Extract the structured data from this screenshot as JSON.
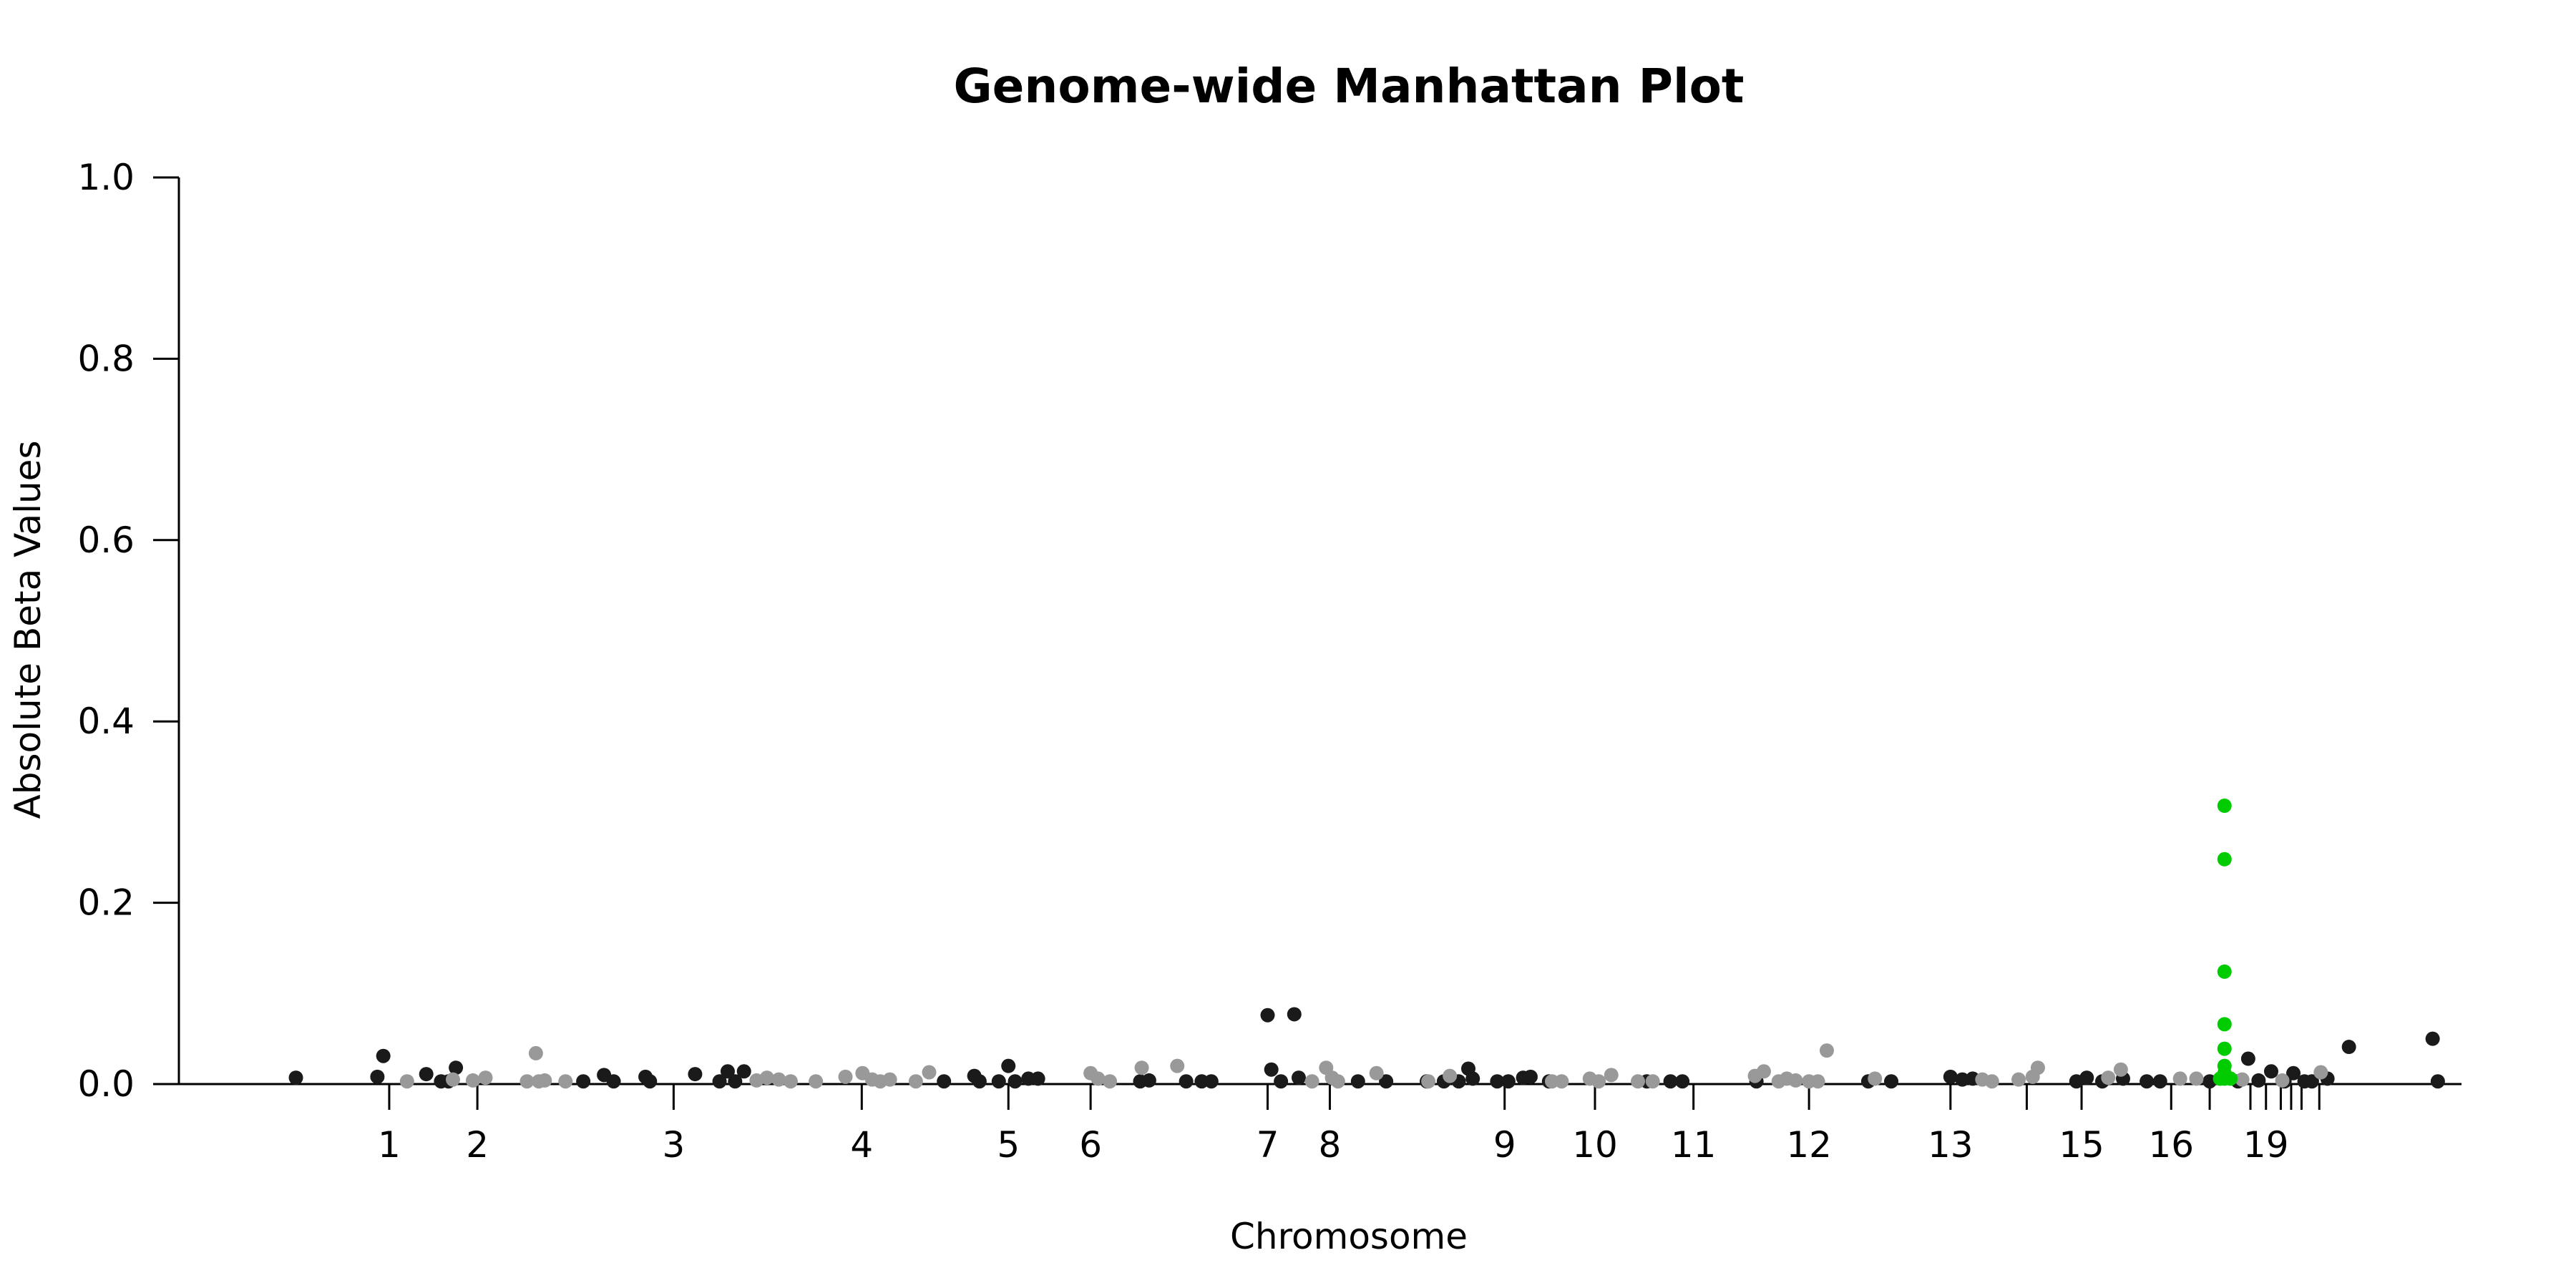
{
  "chart_data": {
    "type": "scatter",
    "title": "Genome-wide Manhattan Plot",
    "xlabel": "Chromosome",
    "ylabel": "Absolute Beta Values",
    "ylim": [
      0,
      1
    ],
    "yticks": [
      0,
      0.2,
      0.4,
      0.6,
      0.8,
      1
    ],
    "ytick_labels": [
      "0.0",
      "0.2",
      "0.4",
      "0.6",
      "0.8",
      "1.0"
    ],
    "xlim": [
      -160,
      2922
    ],
    "grid": false,
    "legend": "none",
    "colors": {
      "dark": "#1a1a1a",
      "light": "#999999",
      "highlight": "#00cc00"
    },
    "chromosome_ticks": [
      {
        "label": "1",
        "pos": 124
      },
      {
        "label": "2",
        "pos": 243
      },
      {
        "label": "3",
        "pos": 508
      },
      {
        "label": "4",
        "pos": 762
      },
      {
        "label": "5",
        "pos": 960
      },
      {
        "label": "6",
        "pos": 1071
      },
      {
        "label": "7",
        "pos": 1310
      },
      {
        "label": "8",
        "pos": 1394
      },
      {
        "label": "9",
        "pos": 1630
      },
      {
        "label": "10",
        "pos": 1752
      },
      {
        "label": "11",
        "pos": 1885
      },
      {
        "label": "12",
        "pos": 2041
      },
      {
        "label": "13",
        "pos": 2232
      },
      {
        "label": "",
        "pos": 2335
      },
      {
        "label": "15",
        "pos": 2409
      },
      {
        "label": "16",
        "pos": 2530
      },
      {
        "label": "",
        "pos": 2582
      },
      {
        "label": "",
        "pos": 2637
      },
      {
        "label": "19",
        "pos": 2658
      },
      {
        "label": "",
        "pos": 2678
      },
      {
        "label": "",
        "pos": 2692
      },
      {
        "label": "",
        "pos": 2706
      },
      {
        "label": "",
        "pos": 2730
      }
    ],
    "series": [
      {
        "color_key": "dark",
        "points": [
          [
            -2,
            0.007
          ],
          [
            108,
            0.008
          ],
          [
            116,
            0.031
          ],
          [
            174,
            0.011
          ],
          [
            194,
            0.003
          ],
          [
            204,
            0.003
          ],
          [
            214,
            0.018
          ],
          [
            386,
            0.003
          ],
          [
            414,
            0.01
          ],
          [
            427,
            0.003
          ],
          [
            470,
            0.008
          ],
          [
            476,
            0.003
          ],
          [
            537,
            0.011
          ],
          [
            570,
            0.003
          ],
          [
            581,
            0.014
          ],
          [
            591,
            0.003
          ],
          [
            603,
            0.014
          ],
          [
            873,
            0.003
          ],
          [
            914,
            0.009
          ],
          [
            921,
            0.003
          ],
          [
            947,
            0.003
          ],
          [
            960,
            0.02
          ],
          [
            969,
            0.003
          ],
          [
            987,
            0.006
          ],
          [
            1000,
            0.006
          ],
          [
            1138,
            0.003
          ],
          [
            1150,
            0.004
          ],
          [
            1200,
            0.003
          ],
          [
            1221,
            0.003
          ],
          [
            1234,
            0.003
          ],
          [
            1310,
            0.076
          ],
          [
            1315,
            0.016
          ],
          [
            1328,
            0.003
          ],
          [
            1352,
            0.007
          ],
          [
            1346,
            0.077
          ],
          [
            1432,
            0.003
          ],
          [
            1470,
            0.003
          ],
          [
            1525,
            0.003
          ],
          [
            1548,
            0.003
          ],
          [
            1568,
            0.003
          ],
          [
            1581,
            0.017
          ],
          [
            1587,
            0.006
          ],
          [
            1620,
            0.003
          ],
          [
            1635,
            0.003
          ],
          [
            1655,
            0.007
          ],
          [
            1665,
            0.008
          ],
          [
            1690,
            0.003
          ],
          [
            1822,
            0.003
          ],
          [
            1854,
            0.003
          ],
          [
            1870,
            0.003
          ],
          [
            1970,
            0.003
          ],
          [
            2121,
            0.003
          ],
          [
            2152,
            0.003
          ],
          [
            2232,
            0.008
          ],
          [
            2248,
            0.005
          ],
          [
            2262,
            0.006
          ],
          [
            2402,
            0.003
          ],
          [
            2416,
            0.007
          ],
          [
            2437,
            0.003
          ],
          [
            2465,
            0.006
          ],
          [
            2497,
            0.003
          ],
          [
            2515,
            0.003
          ],
          [
            2582,
            0.003
          ],
          [
            2620,
            0.003
          ],
          [
            2634,
            0.028
          ],
          [
            2648,
            0.004
          ],
          [
            2665,
            0.014
          ],
          [
            2683,
            0.003
          ],
          [
            2695,
            0.012
          ],
          [
            2710,
            0.003
          ],
          [
            2720,
            0.003
          ],
          [
            2741,
            0.006
          ],
          [
            2770,
            0.041
          ],
          [
            2883,
            0.05
          ],
          [
            2890,
            0.003
          ]
        ]
      },
      {
        "color_key": "light",
        "points": [
          [
            148,
            0.003
          ],
          [
            210,
            0.005
          ],
          [
            237,
            0.004
          ],
          [
            254,
            0.007
          ],
          [
            326,
            0.003
          ],
          [
            334,
            0.004
          ],
          [
            310,
            0.003
          ],
          [
            322,
            0.034
          ],
          [
            362,
            0.003
          ],
          [
            620,
            0.004
          ],
          [
            634,
            0.007
          ],
          [
            650,
            0.005
          ],
          [
            666,
            0.003
          ],
          [
            700,
            0.003
          ],
          [
            740,
            0.008
          ],
          [
            763,
            0.012
          ],
          [
            776,
            0.005
          ],
          [
            787,
            0.003
          ],
          [
            800,
            0.005
          ],
          [
            835,
            0.003
          ],
          [
            853,
            0.013
          ],
          [
            1071,
            0.012
          ],
          [
            1081,
            0.006
          ],
          [
            1097,
            0.003
          ],
          [
            1140,
            0.018
          ],
          [
            1188,
            0.02
          ],
          [
            1370,
            0.003
          ],
          [
            1389,
            0.018
          ],
          [
            1397,
            0.007
          ],
          [
            1405,
            0.003
          ],
          [
            1457,
            0.012
          ],
          [
            1527,
            0.003
          ],
          [
            1556,
            0.009
          ],
          [
            1694,
            0.003
          ],
          [
            1707,
            0.003
          ],
          [
            1745,
            0.006
          ],
          [
            1757,
            0.003
          ],
          [
            1774,
            0.01
          ],
          [
            1810,
            0.003
          ],
          [
            1830,
            0.003
          ],
          [
            1968,
            0.009
          ],
          [
            1980,
            0.014
          ],
          [
            2000,
            0.003
          ],
          [
            2011,
            0.006
          ],
          [
            2023,
            0.004
          ],
          [
            2041,
            0.003
          ],
          [
            2053,
            0.003
          ],
          [
            2065,
            0.037
          ],
          [
            2130,
            0.006
          ],
          [
            2275,
            0.005
          ],
          [
            2288,
            0.003
          ],
          [
            2324,
            0.005
          ],
          [
            2343,
            0.008
          ],
          [
            2350,
            0.018
          ],
          [
            2445,
            0.007
          ],
          [
            2462,
            0.016
          ],
          [
            2542,
            0.006
          ],
          [
            2564,
            0.006
          ],
          [
            2626,
            0.005
          ],
          [
            2680,
            0.004
          ],
          [
            2732,
            0.013
          ]
        ]
      },
      {
        "color_key": "highlight",
        "points": [
          [
            2602,
            0.307
          ],
          [
            2602,
            0.248
          ],
          [
            2602,
            0.124
          ],
          [
            2602,
            0.066
          ],
          [
            2602,
            0.039
          ],
          [
            2602,
            0.02
          ],
          [
            2602,
            0.012
          ],
          [
            2602,
            0.006
          ],
          [
            2596,
            0.006
          ],
          [
            2610,
            0.006
          ]
        ]
      }
    ]
  }
}
